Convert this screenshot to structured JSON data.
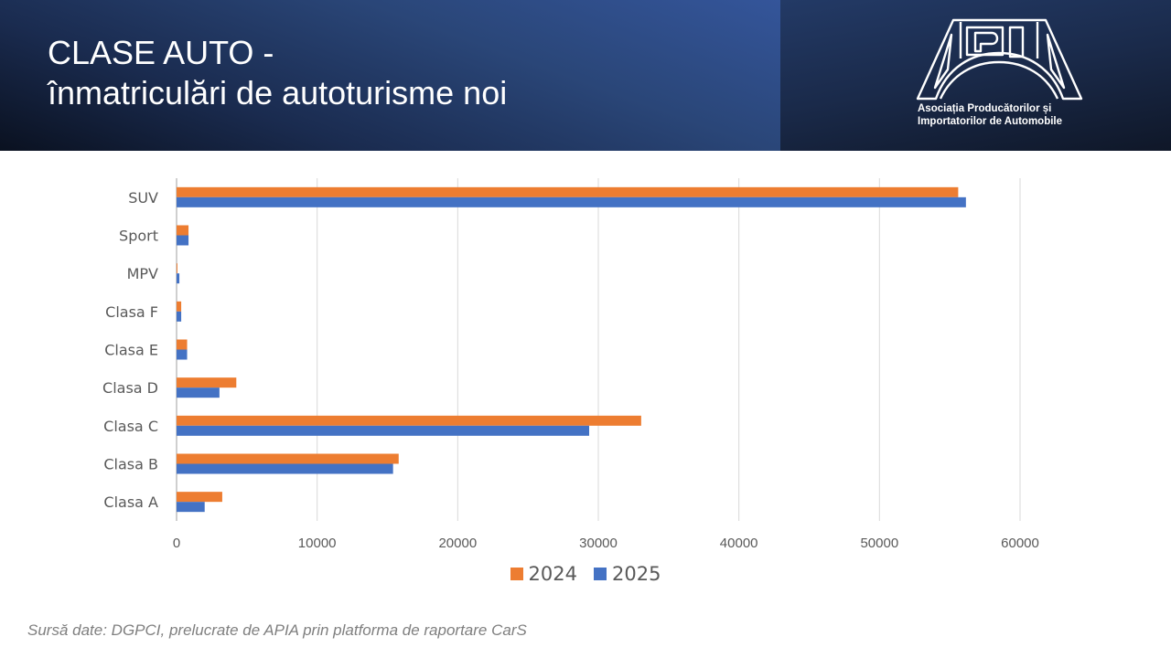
{
  "header": {
    "title_line1": "CLASE AUTO -",
    "title_line2": "înmatriculări de autoturisme noi"
  },
  "logo": {
    "mark": "APIA",
    "name_line1": "Asociația Producătorilor și",
    "name_line2": "Importatorilor de Automobile"
  },
  "footer": {
    "source": "Sursă date: DGPCI, prelucrate de APIA prin platforma de raportare CarS"
  },
  "colors": {
    "series_2024": "#ed7d31",
    "series_2025": "#4472c4",
    "grid": "#d9d9d9",
    "axis_text": "#595959"
  },
  "chart_data": {
    "type": "bar",
    "orientation": "horizontal",
    "title": "CLASE AUTO - înmatriculări de autoturisme noi",
    "xlabel": "",
    "ylabel": "",
    "categories": [
      "SUV",
      "Sport",
      "MPV",
      "Clasa F",
      "Clasa E",
      "Clasa D",
      "Clasa C",
      "Clasa B",
      "Clasa A"
    ],
    "series": [
      {
        "name": "2024",
        "color": "#ed7d31",
        "values": [
          55600,
          850,
          60,
          330,
          750,
          4250,
          33050,
          15800,
          3250
        ]
      },
      {
        "name": "2025",
        "color": "#4472c4",
        "values": [
          56150,
          850,
          200,
          330,
          750,
          3050,
          29350,
          15400,
          2000
        ]
      }
    ],
    "xlim": [
      0,
      60000
    ],
    "xticks": [
      "0",
      "10000",
      "20000",
      "30000",
      "40000",
      "50000",
      "60000"
    ],
    "grid": true,
    "legend": {
      "position": "bottom",
      "entries": [
        "2024",
        "2025"
      ]
    }
  }
}
